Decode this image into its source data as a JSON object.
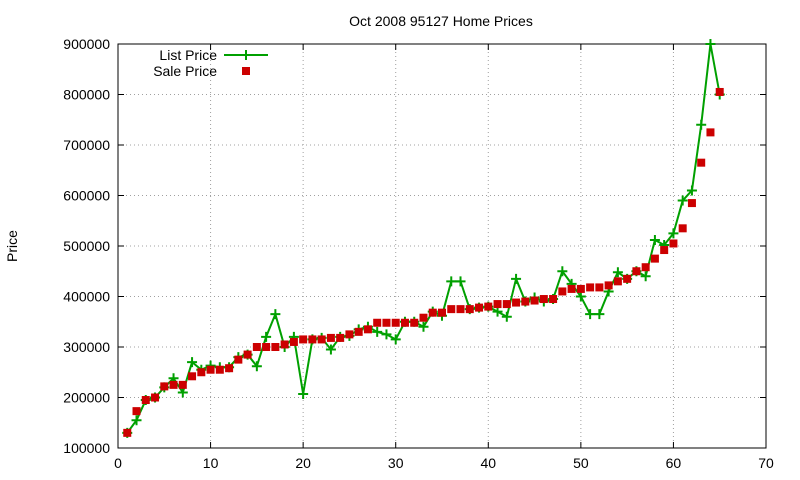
{
  "chart_data": {
    "type": "line",
    "title": "Oct 2008 95127 Home Prices",
    "xlabel": "",
    "ylabel": "Price",
    "xlim": [
      0,
      70
    ],
    "ylim": [
      100000,
      900000
    ],
    "x_ticks": [
      0,
      10,
      20,
      30,
      40,
      50,
      60,
      70
    ],
    "y_ticks": [
      100000,
      200000,
      300000,
      400000,
      500000,
      600000,
      700000,
      800000,
      900000
    ],
    "grid": true,
    "legend_position": "top-left",
    "x": [
      1,
      2,
      3,
      4,
      5,
      6,
      7,
      8,
      9,
      10,
      11,
      12,
      13,
      14,
      15,
      16,
      17,
      18,
      19,
      20,
      21,
      22,
      23,
      24,
      25,
      26,
      27,
      28,
      29,
      30,
      31,
      32,
      33,
      34,
      35,
      36,
      37,
      38,
      39,
      40,
      41,
      42,
      43,
      44,
      45,
      46,
      47,
      48,
      49,
      50,
      51,
      52,
      53,
      54,
      55,
      56,
      57,
      58,
      59,
      60,
      61,
      62,
      63,
      64,
      65
    ],
    "series": [
      {
        "name": "List Price",
        "style": "line-plus",
        "color": "#00a000",
        "values": [
          130000,
          155000,
          195000,
          200000,
          220000,
          238000,
          210000,
          270000,
          255000,
          263000,
          260000,
          260000,
          280000,
          285000,
          262000,
          320000,
          365000,
          300000,
          320000,
          207000,
          315000,
          318000,
          295000,
          320000,
          322000,
          335000,
          340000,
          330000,
          325000,
          315000,
          350000,
          350000,
          340000,
          370000,
          362000,
          430000,
          430000,
          375000,
          378000,
          380000,
          370000,
          360000,
          435000,
          390000,
          398000,
          390000,
          395000,
          450000,
          425000,
          400000,
          365000,
          365000,
          410000,
          448000,
          435000,
          450000,
          440000,
          512000,
          502000,
          525000,
          590000,
          610000,
          740000,
          900000,
          800000
        ]
      },
      {
        "name": "Sale Price",
        "style": "points-square",
        "color": "#cc0000",
        "values": [
          130000,
          173000,
          195000,
          200000,
          222000,
          225000,
          225000,
          242000,
          250000,
          255000,
          255000,
          258000,
          275000,
          285000,
          300000,
          300000,
          300000,
          305000,
          310000,
          315000,
          315000,
          315000,
          318000,
          318000,
          325000,
          330000,
          335000,
          348000,
          348000,
          348000,
          348000,
          348000,
          358000,
          368000,
          368000,
          375000,
          375000,
          375000,
          378000,
          380000,
          385000,
          385000,
          388000,
          390000,
          392000,
          395000,
          395000,
          410000,
          415000,
          415000,
          418000,
          418000,
          422000,
          430000,
          435000,
          450000,
          458000,
          475000,
          492000,
          505000,
          535000,
          585000,
          665000,
          725000,
          805000
        ]
      }
    ]
  }
}
